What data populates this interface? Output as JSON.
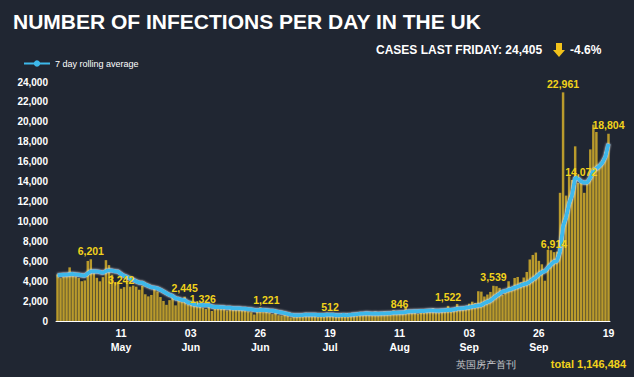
{
  "chart_data": {
    "type": "bar",
    "title": "NUMBER OF INFECTIONS PER DAY IN THE UK",
    "subtitle": "CASES LAST FRIDAY: 24,405",
    "change": "-4.6%",
    "footer": "total 1,146,484",
    "watermark": "英国房产首刊",
    "legend": "top-left",
    "grid": false,
    "categories": [
      null,
      null,
      null,
      null,
      null,
      null,
      null,
      null,
      null,
      null,
      null,
      null,
      null,
      null,
      null,
      null,
      null,
      null,
      null,
      null,
      null,
      "11\nMay",
      null,
      null,
      null,
      null,
      null,
      null,
      null,
      null,
      null,
      null,
      null,
      null,
      null,
      null,
      null,
      null,
      null,
      null,
      null,
      null,
      null,
      null,
      "03\nJun",
      null,
      null,
      null,
      null,
      null,
      null,
      null,
      null,
      null,
      null,
      null,
      null,
      null,
      null,
      null,
      null,
      null,
      null,
      null,
      null,
      null,
      null,
      "26\nJun",
      null,
      null,
      null,
      null,
      null,
      null,
      null,
      null,
      null,
      null,
      null,
      null,
      null,
      null,
      null,
      null,
      null,
      null,
      null,
      null,
      null,
      null,
      "19\nJul",
      null,
      null,
      null,
      null,
      null,
      null,
      null,
      null,
      null,
      null,
      null,
      null,
      null,
      null,
      null,
      null,
      null,
      null,
      null,
      null,
      null,
      null,
      "11\nAug",
      null,
      null,
      null,
      null,
      null,
      null,
      null,
      null,
      null,
      null,
      null,
      null,
      null,
      null,
      null,
      null,
      null,
      null,
      null,
      null,
      null,
      null,
      "03\nSep",
      null,
      null,
      null,
      null,
      null,
      null,
      null,
      null,
      null,
      null,
      null,
      null,
      null,
      null,
      null,
      null,
      null,
      null,
      null,
      null,
      null,
      null,
      "26\nSep",
      null,
      null,
      null,
      null,
      null,
      null,
      null,
      null,
      null,
      null,
      null,
      null,
      null,
      null,
      null,
      null,
      null,
      null,
      null,
      null,
      null,
      null,
      "19"
    ],
    "series": [
      {
        "type": "bar",
        "color": "#b99a2c",
        "values": [
          4676,
          4301,
          4451,
          4583,
          5386,
          4913,
          4463,
          4310,
          3996,
          4076,
          6032,
          6201,
          4806,
          4339,
          3985,
          4406,
          6111,
          5614,
          4649,
          3896,
          3923,
          3242,
          3403,
          3877,
          3446,
          3560,
          3451,
          3142,
          3534,
          2684,
          2472,
          2615,
          3287,
          2959,
          2405,
          2013,
          1625,
          2095,
          2614,
          1570,
          2412,
          1936,
          2445,
          1653,
          1871,
          1805,
          1650,
          1557,
          1326,
          1205,
          1741,
          1003,
          1266,
          1541,
          1425,
          1514,
          1056,
          1279,
          1115,
          1218,
          1346,
          1295,
          1012,
          958,
          874,
          653,
          1118,
          1380,
          890,
          1221,
          815,
          689,
          829,
          576,
          544,
          624,
          516,
          352,
          581,
          630,
          642,
          642,
          820,
          650,
          530,
          538,
          398,
          642,
          538,
          827,
          512,
          580,
          560,
          445,
          769,
          560,
          767,
          745,
          685,
          581,
          763,
          800,
          880,
          743,
          744,
          938,
          670,
          892,
          950,
          871,
          758,
          1062,
          816,
          846,
          1009,
          1441,
          1040,
          1012,
          1040,
          713,
          1089,
          812,
          1182,
          1033,
          1288,
          1041,
          853,
          1184,
          1048,
          1522,
          1276,
          1108,
          1715,
          1406,
          1295,
          1508,
          1735,
          1940,
          1813,
          2988,
          2948,
          2460,
          2659,
          2919,
          3539,
          3497,
          3330,
          2621,
          3105,
          3991,
          3395,
          4322,
          4422,
          3899,
          4368,
          4926,
          6178,
          6634,
          6874,
          6042,
          5693,
          4044,
          7143,
          7108,
          6914,
          6968,
          12872,
          22961,
          12594,
          14542,
          14162,
          17540,
          13864,
          14072,
          12872,
          13972,
          17234,
          19724,
          18980,
          15650,
          16171,
          16982,
          18804
        ]
      },
      {
        "type": "line",
        "name": "7 day rolling average",
        "color": "#3db8ea",
        "marker": "none",
        "line_style": "solid",
        "values": [
          4600,
          4620,
          4640,
          4650,
          4700,
          4720,
          4680,
          4640,
          4590,
          4540,
          4780,
          4980,
          5000,
          4980,
          4920,
          4830,
          5010,
          5080,
          5060,
          4990,
          4960,
          4720,
          4530,
          4420,
          4250,
          4140,
          3970,
          3850,
          3840,
          3660,
          3530,
          3390,
          3350,
          3270,
          3130,
          2960,
          2780,
          2620,
          2510,
          2270,
          2230,
          2110,
          2090,
          1860,
          1790,
          1670,
          1630,
          1590,
          1610,
          1570,
          1580,
          1460,
          1400,
          1400,
          1380,
          1370,
          1320,
          1320,
          1290,
          1290,
          1270,
          1240,
          1230,
          1180,
          1170,
          1110,
          1080,
          1100,
          1110,
          1090,
          1050,
          1020,
          970,
          900,
          850,
          790,
          720,
          640,
          590,
          580,
          590,
          600,
          640,
          630,
          620,
          620,
          610,
          610,
          600,
          630,
          620,
          620,
          570,
          570,
          590,
          590,
          600,
          620,
          660,
          690,
          720,
          740,
          770,
          760,
          740,
          750,
          740,
          760,
          760,
          780,
          790,
          830,
          840,
          850,
          860,
          900,
          960,
          960,
          990,
          980,
          1000,
          1010,
          1040,
          1050,
          1050,
          1040,
          1030,
          1060,
          1070,
          1110,
          1110,
          1160,
          1230,
          1260,
          1270,
          1330,
          1380,
          1440,
          1500,
          1560,
          1600,
          1780,
          1920,
          2050,
          2290,
          2520,
          2720,
          2950,
          3010,
          3140,
          3220,
          3350,
          3460,
          3570,
          3690,
          3760,
          3950,
          4170,
          4390,
          4670,
          4890,
          5000,
          5350,
          5670,
          5950,
          6030,
          7000,
          9500,
          10400,
          11800,
          12700,
          14400,
          14300,
          14000,
          13900,
          13900,
          14400,
          15100,
          15300,
          15550,
          15900,
          16500,
          17800
        ]
      }
    ],
    "annotations": [
      {
        "text": "6,201",
        "index": 11
      },
      {
        "text": "3,242",
        "index": 21
      },
      {
        "text": "2,445",
        "index": 42
      },
      {
        "text": "1,326",
        "index": 48
      },
      {
        "text": "1,221",
        "index": 69
      },
      {
        "text": "512",
        "index": 90
      },
      {
        "text": "846",
        "index": 113
      },
      {
        "text": "1,522",
        "index": 129
      },
      {
        "text": "3,539",
        "index": 144
      },
      {
        "text": "6,914",
        "index": 164
      },
      {
        "text": "22,961",
        "index": 167
      },
      {
        "text": "14,072",
        "index": 173
      },
      {
        "text": "18,804",
        "index": 182
      }
    ],
    "ylim": [
      0,
      24000
    ],
    "yticks": [
      0,
      {
        "value": 2000,
        "label": "2,000"
      },
      {
        "value": 4000,
        "label": "4,000"
      },
      {
        "value": 6000,
        "label": "6,000"
      },
      {
        "value": 8000,
        "label": "8,000"
      },
      {
        "value": 10000,
        "label": "10,000"
      },
      {
        "value": 12000,
        "label": "12,000"
      },
      {
        "value": 14000,
        "label": "14,000"
      },
      {
        "value": 16000,
        "label": "16,000"
      },
      {
        "value": 18000,
        "label": "18,000"
      },
      {
        "value": 20000,
        "label": "20,000"
      },
      {
        "value": 22000,
        "label": "22,000"
      },
      {
        "value": 24000,
        "label": "24,000"
      }
    ]
  }
}
